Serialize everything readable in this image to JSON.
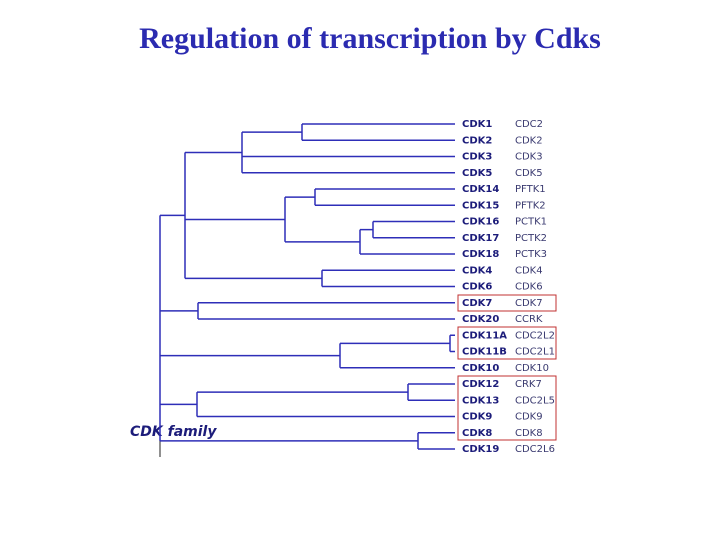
{
  "title": "Regulation of transcription by Cdks",
  "family_label": "CDK family",
  "leaves": [
    {
      "cdk": "CDK1",
      "alias": "CDC2"
    },
    {
      "cdk": "CDK2",
      "alias": "CDK2"
    },
    {
      "cdk": "CDK3",
      "alias": "CDK3"
    },
    {
      "cdk": "CDK5",
      "alias": "CDK5"
    },
    {
      "cdk": "CDK14",
      "alias": "PFTK1"
    },
    {
      "cdk": "CDK15",
      "alias": "PFTK2"
    },
    {
      "cdk": "CDK16",
      "alias": "PCTK1"
    },
    {
      "cdk": "CDK17",
      "alias": "PCTK2"
    },
    {
      "cdk": "CDK18",
      "alias": "PCTK3"
    },
    {
      "cdk": "CDK4",
      "alias": "CDK4"
    },
    {
      "cdk": "CDK6",
      "alias": "CDK6"
    },
    {
      "cdk": "CDK7",
      "alias": "CDK7"
    },
    {
      "cdk": "CDK20",
      "alias": "CCRK"
    },
    {
      "cdk": "CDK11A",
      "alias": "CDC2L2"
    },
    {
      "cdk": "CDK11B",
      "alias": "CDC2L1"
    },
    {
      "cdk": "CDK10",
      "alias": "CDK10"
    },
    {
      "cdk": "CDK12",
      "alias": "CRK7"
    },
    {
      "cdk": "CDK13",
      "alias": "CDC2L5"
    },
    {
      "cdk": "CDK9",
      "alias": "CDK9"
    },
    {
      "cdk": "CDK8",
      "alias": "CDK8"
    },
    {
      "cdk": "CDK19",
      "alias": "CDC2L6"
    }
  ]
}
